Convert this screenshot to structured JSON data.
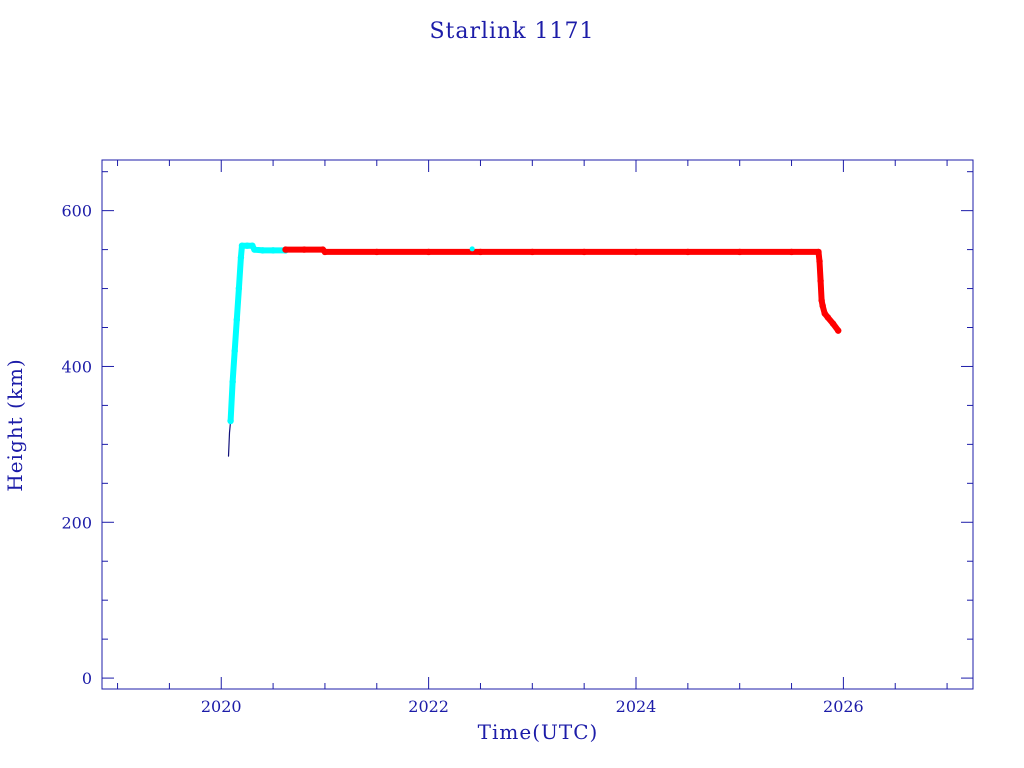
{
  "chart_data": {
    "type": "line",
    "title": "Starlink 1171",
    "xlabel": "Time(UTC)",
    "ylabel": "Height (km)",
    "xlim": [
      2018.85,
      2027.25
    ],
    "ylim": [
      -14,
      665
    ],
    "x_ticks": [
      2020,
      2022,
      2024,
      2026
    ],
    "x_tick_labels": [
      "2020",
      "2022",
      "2024",
      "2026"
    ],
    "y_ticks": [
      0,
      200,
      400,
      600
    ],
    "y_tick_labels": [
      "0",
      "200",
      "400",
      "600"
    ],
    "grid": false,
    "colors": {
      "frame": "#1c1ca8",
      "text": "#1c1ca8",
      "line": "#10107a",
      "cyan": "#00ffff",
      "red": "#ff0000"
    },
    "series": [
      {
        "color": "line",
        "points": [
          [
            2020.07,
            285
          ],
          [
            2020.08,
            315
          ],
          [
            2020.09,
            330
          ]
        ]
      },
      {
        "color": "cyan",
        "points": [
          [
            2020.09,
            330
          ],
          [
            2020.11,
            380
          ],
          [
            2020.13,
            420
          ],
          [
            2020.15,
            460
          ],
          [
            2020.17,
            500
          ],
          [
            2020.19,
            540
          ],
          [
            2020.2,
            555
          ],
          [
            2020.25,
            555
          ],
          [
            2020.3,
            555
          ],
          [
            2020.32,
            550
          ],
          [
            2020.4,
            549
          ],
          [
            2020.5,
            549
          ],
          [
            2020.62,
            549
          ]
        ]
      },
      {
        "color": "red",
        "points": [
          [
            2020.62,
            550
          ],
          [
            2020.8,
            550
          ],
          [
            2020.98,
            550
          ],
          [
            2021.0,
            547
          ],
          [
            2021.5,
            547
          ],
          [
            2022.0,
            547
          ],
          [
            2022.5,
            547
          ],
          [
            2023.0,
            547
          ],
          [
            2023.5,
            547
          ],
          [
            2024.0,
            547
          ],
          [
            2024.5,
            547
          ],
          [
            2025.0,
            547
          ],
          [
            2025.5,
            547
          ],
          [
            2025.76,
            547
          ],
          [
            2025.77,
            535
          ],
          [
            2025.78,
            510
          ],
          [
            2025.79,
            485
          ],
          [
            2025.8,
            478
          ],
          [
            2025.82,
            468
          ],
          [
            2025.85,
            463
          ],
          [
            2025.9,
            455
          ],
          [
            2025.95,
            446
          ]
        ]
      }
    ],
    "markers": [
      {
        "color": "cyan",
        "x": 2022.42,
        "y": 551
      }
    ]
  }
}
